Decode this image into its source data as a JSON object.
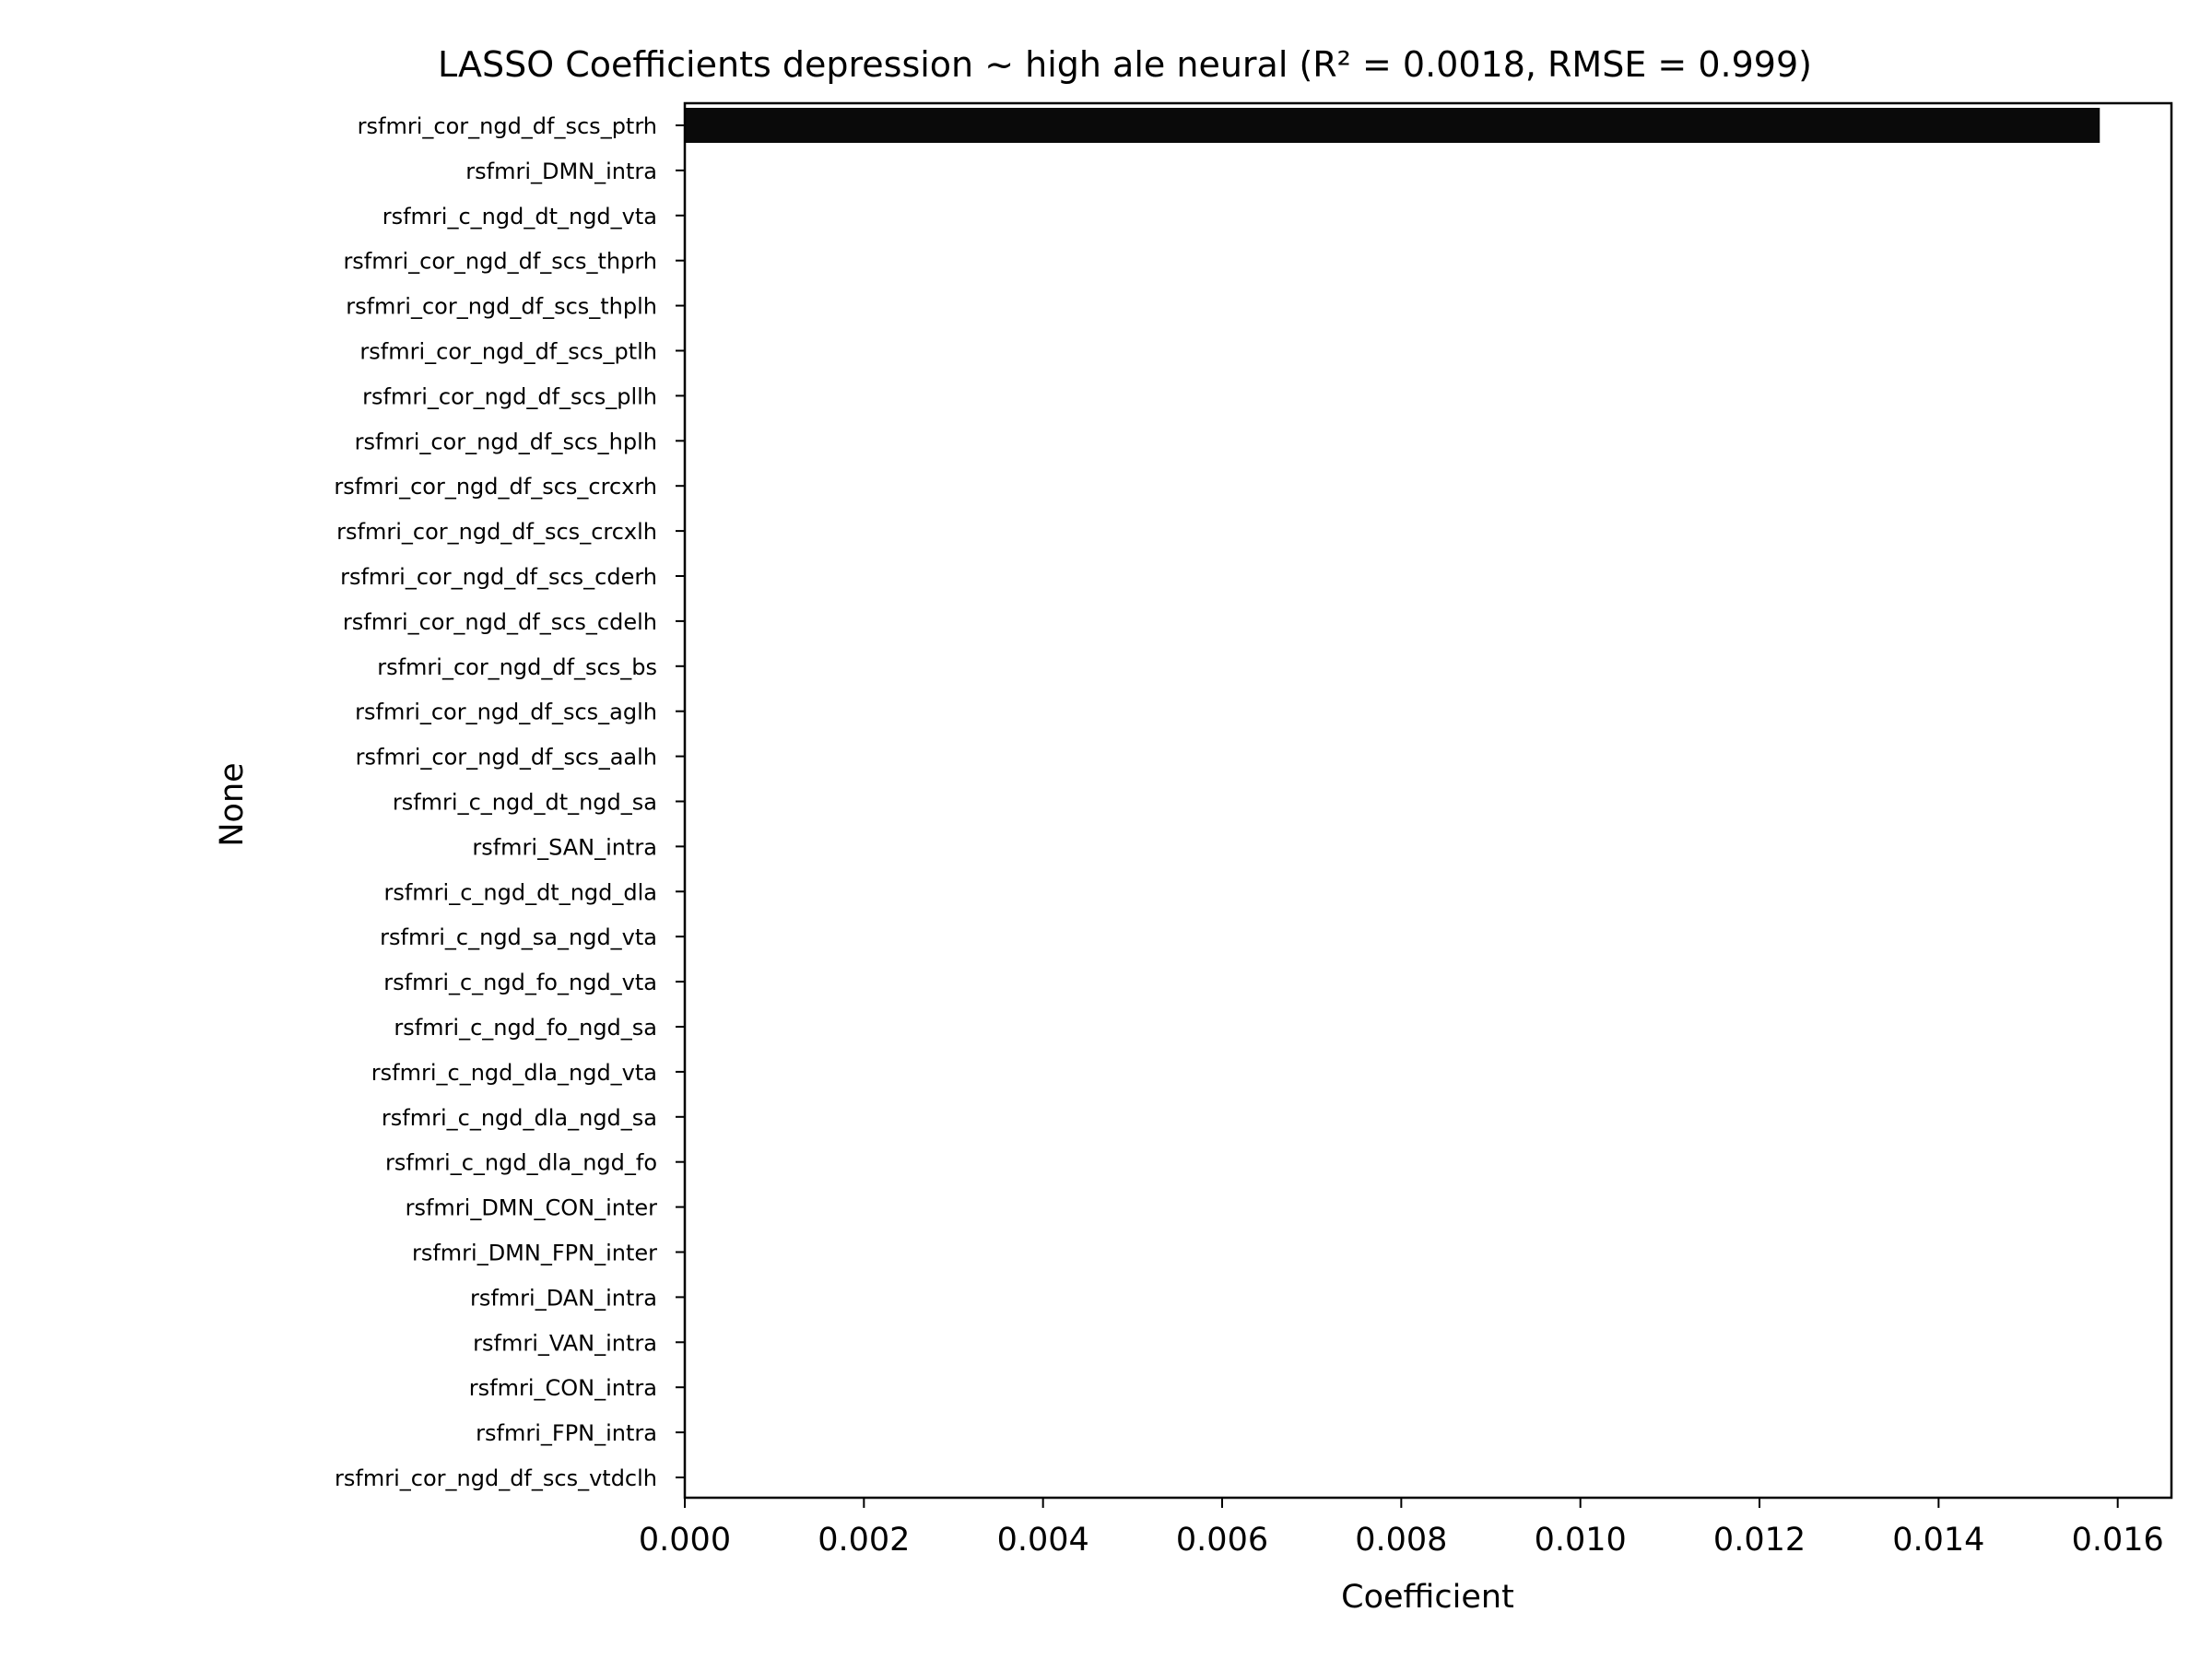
{
  "chart_data": {
    "type": "bar",
    "orientation": "horizontal",
    "title": "LASSO Coefficients depression ~ high ale neural (R² = 0.0018, RMSE = 0.999)",
    "xlabel": "Coefficient",
    "ylabel": "None",
    "categories": [
      "rsfmri_cor_ngd_df_scs_ptrh",
      "rsfmri_DMN_intra",
      "rsfmri_c_ngd_dt_ngd_vta",
      "rsfmri_cor_ngd_df_scs_thprh",
      "rsfmri_cor_ngd_df_scs_thplh",
      "rsfmri_cor_ngd_df_scs_ptlh",
      "rsfmri_cor_ngd_df_scs_pllh",
      "rsfmri_cor_ngd_df_scs_hplh",
      "rsfmri_cor_ngd_df_scs_crcxrh",
      "rsfmri_cor_ngd_df_scs_crcxlh",
      "rsfmri_cor_ngd_df_scs_cderh",
      "rsfmri_cor_ngd_df_scs_cdelh",
      "rsfmri_cor_ngd_df_scs_bs",
      "rsfmri_cor_ngd_df_scs_aglh",
      "rsfmri_cor_ngd_df_scs_aalh",
      "rsfmri_c_ngd_dt_ngd_sa",
      "rsfmri_SAN_intra",
      "rsfmri_c_ngd_dt_ngd_dla",
      "rsfmri_c_ngd_sa_ngd_vta",
      "rsfmri_c_ngd_fo_ngd_vta",
      "rsfmri_c_ngd_fo_ngd_sa",
      "rsfmri_c_ngd_dla_ngd_vta",
      "rsfmri_c_ngd_dla_ngd_sa",
      "rsfmri_c_ngd_dla_ngd_fo",
      "rsfmri_DMN_CON_inter",
      "rsfmri_DMN_FPN_inter",
      "rsfmri_DAN_intra",
      "rsfmri_VAN_intra",
      "rsfmri_CON_intra",
      "rsfmri_FPN_intra",
      "rsfmri_cor_ngd_df_scs_vtdclh"
    ],
    "values": [
      0.0158,
      0,
      0,
      0,
      0,
      0,
      0,
      0,
      0,
      0,
      0,
      0,
      0,
      0,
      0,
      0,
      0,
      0,
      0,
      0,
      0,
      0,
      0,
      0,
      0,
      0,
      0,
      0,
      0,
      0,
      0
    ],
    "xlim": [
      0,
      0.0166
    ],
    "xticks": [
      0,
      0.002,
      0.004,
      0.006,
      0.008,
      0.01,
      0.012,
      0.014,
      0.016
    ],
    "xtick_labels": [
      "0.000",
      "0.002",
      "0.004",
      "0.006",
      "0.008",
      "0.010",
      "0.012",
      "0.014",
      "0.016"
    ],
    "bar_color": "#0a0a0a",
    "grid": false,
    "legend": "none"
  }
}
